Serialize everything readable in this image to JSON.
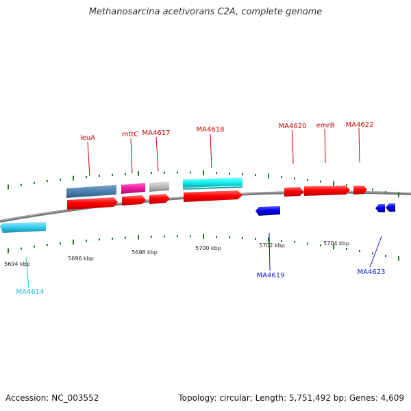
{
  "title": "Methanosarcina acetivorans C2A, complete genome",
  "footer": {
    "accession": "Accession: NC_003552",
    "summary": "Topology: circular; Length: 5,751,492 bp; Genes: 4,609"
  },
  "colors": {
    "forward_gene": "#ff0000",
    "reverse_gene": "#0000ee",
    "gene_label_forward": "#cc0000",
    "gene_label_reverse": "#1010cc",
    "gene_label_cyan": "#22bbdd",
    "tick": "#227722",
    "backbone": "#888888"
  },
  "kbp_labels": [
    "5694 kbp",
    "5696 kbp",
    "5698 kbp",
    "5700 kbp",
    "5702 kbp",
    "5704 kbp"
  ],
  "gene_labels": [
    {
      "text": "leuA",
      "strand": "forward"
    },
    {
      "text": "mttC",
      "strand": "forward"
    },
    {
      "text": "MA4617",
      "strand": "forward"
    },
    {
      "text": "MA4618",
      "strand": "forward"
    },
    {
      "text": "MA4620",
      "strand": "forward"
    },
    {
      "text": "emrB",
      "strand": "forward"
    },
    {
      "text": "MA4622",
      "strand": "forward"
    },
    {
      "text": "MA4619",
      "strand": "reverse"
    },
    {
      "text": "MA4623",
      "strand": "reverse"
    },
    {
      "text": "MA4614",
      "strand": "cyan"
    }
  ],
  "features": [
    {
      "id": "leuA-annotation",
      "color": "#4a7fb0"
    },
    {
      "id": "mttC-annotation",
      "color": "#ee1aa0"
    },
    {
      "id": "MA4617-annotation",
      "color": "#bbbbbb"
    },
    {
      "id": "MA4618-annotation",
      "color": "#12eef0"
    },
    {
      "id": "MA4614-annotation",
      "color": "#33ccee"
    },
    {
      "id": "leuA-cds",
      "color": "#ff0000"
    },
    {
      "id": "mttC-cds",
      "color": "#ff0000"
    },
    {
      "id": "MA4617-cds",
      "color": "#ff0000"
    },
    {
      "id": "MA4618-cds",
      "color": "#ff0000"
    },
    {
      "id": "MA4620-cds",
      "color": "#ff0000"
    },
    {
      "id": "emrB-cds",
      "color": "#ff0000"
    },
    {
      "id": "MA4622-cds",
      "color": "#ff0000"
    },
    {
      "id": "MA4619-cds",
      "color": "#0000ee"
    },
    {
      "id": "MA4623-cds",
      "color": "#0000ee"
    }
  ]
}
